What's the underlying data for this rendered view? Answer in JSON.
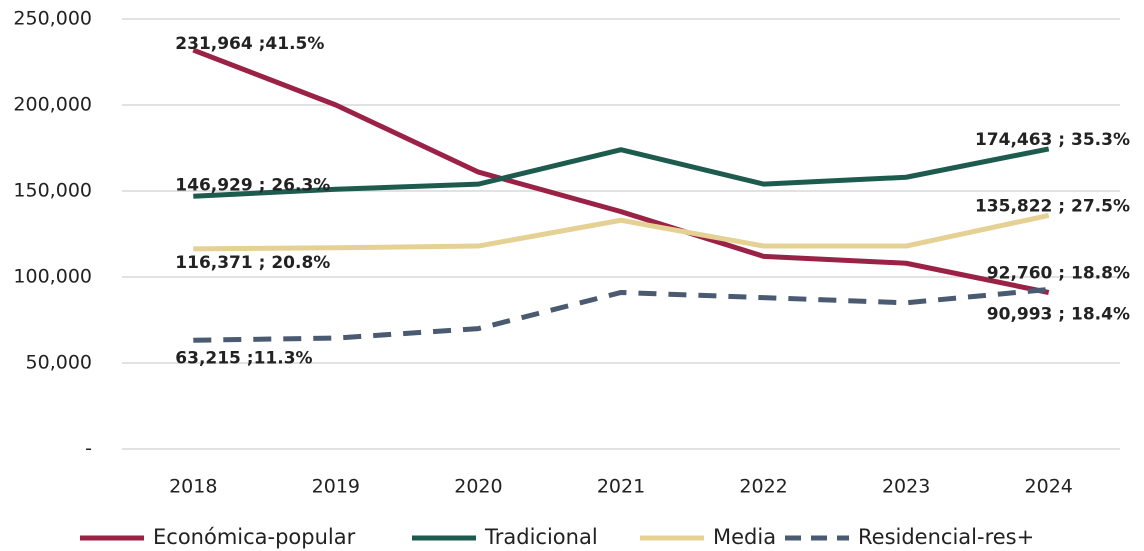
{
  "chart_data": {
    "type": "line",
    "categories": [
      "2018",
      "2019",
      "2020",
      "2021",
      "2022",
      "2023",
      "2024"
    ],
    "series": [
      {
        "name": "Económica-popular",
        "color": "#9b2247",
        "line_style": "solid",
        "values": [
          231964,
          200000,
          161000,
          138000,
          112000,
          108000,
          90993
        ],
        "value_labels": [
          "231,964 ;41.5%",
          null,
          null,
          null,
          null,
          null,
          "90,993 ; 18.4%"
        ]
      },
      {
        "name": "Tradicional",
        "color": "#1e5b4f",
        "line_style": "solid",
        "values": [
          146929,
          151000,
          154000,
          174000,
          154000,
          158000,
          174463
        ],
        "value_labels": [
          "146,929 ; 26.3%",
          null,
          null,
          null,
          null,
          null,
          "174,463 ; 35.3%"
        ]
      },
      {
        "name": "Media",
        "color": "#e6d194",
        "line_style": "solid",
        "values": [
          116371,
          117000,
          118000,
          133000,
          118000,
          118000,
          135822
        ],
        "value_labels": [
          "116,371 ; 20.8%",
          null,
          null,
          null,
          null,
          null,
          "135,822 ; 27.5%"
        ]
      },
      {
        "name": "Residencial-res+",
        "color": "#4a5a70",
        "line_style": "dashed",
        "values": [
          63215,
          64500,
          70000,
          91000,
          88000,
          85000,
          92760
        ],
        "value_labels": [
          "63,215 ;11.3%",
          null,
          null,
          null,
          null,
          null,
          "92,760 ; 18.8%"
        ]
      }
    ],
    "ylim": [
      0,
      250000
    ],
    "yticks": [
      {
        "value": 0,
        "label": "-"
      },
      {
        "value": 50000,
        "label": "50,000"
      },
      {
        "value": 100000,
        "label": "100,000"
      },
      {
        "value": 150000,
        "label": "150,000"
      },
      {
        "value": 200000,
        "label": "200,000"
      },
      {
        "value": 250000,
        "label": "250,000"
      }
    ],
    "grid": true,
    "legend": "bottom"
  }
}
